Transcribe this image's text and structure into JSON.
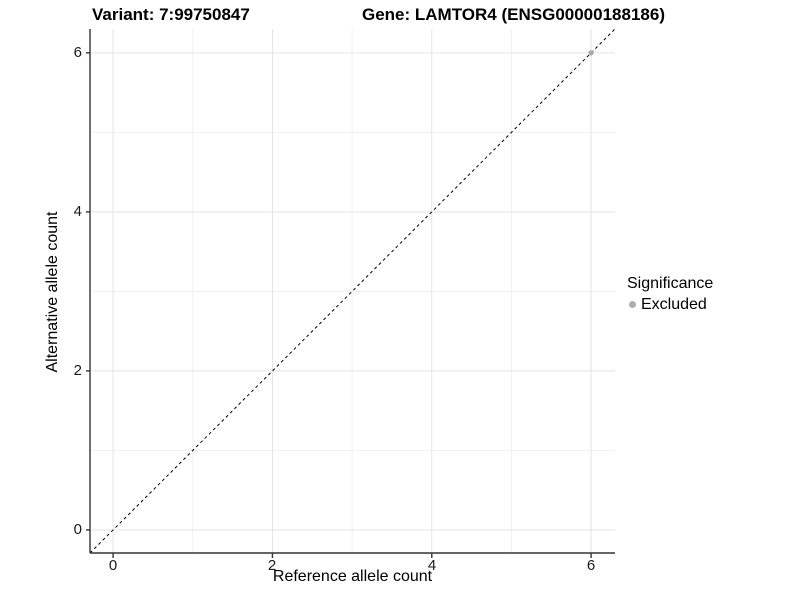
{
  "chart_data": {
    "type": "scatter",
    "title_left": "Variant: 7:99750847",
    "title_right": "Gene: LAMTOR4 (ENSG00000188186)",
    "xlabel": "Reference allele count",
    "ylabel": "Alternative allele count",
    "xlim": [
      -0.29,
      6.3
    ],
    "ylim": [
      -0.29,
      6.3
    ],
    "x_ticks": [
      0,
      2,
      4,
      6
    ],
    "y_ticks": [
      0,
      2,
      4,
      6
    ],
    "x_minor_ticks": [
      1,
      3,
      5
    ],
    "y_minor_ticks": [
      1,
      3,
      5
    ],
    "grid": true,
    "reference_line": {
      "kind": "identity",
      "style": "dashed",
      "from": [
        -0.29,
        -0.29
      ],
      "to": [
        6.3,
        6.3
      ]
    },
    "series": [
      {
        "name": "Excluded",
        "points": [
          [
            6,
            6
          ]
        ]
      }
    ],
    "legend": {
      "position": "right",
      "title": "Significance",
      "items": [
        {
          "label": "Excluded",
          "color": "#adadad"
        }
      ]
    }
  },
  "colors": {
    "background": "#ffffff",
    "grid_major": "#e4e4e4",
    "grid_minor": "#f0f0f0",
    "axis_line": "#333333",
    "reference_line": "#000000",
    "point": "#a9a9a9",
    "text": "#000000"
  }
}
